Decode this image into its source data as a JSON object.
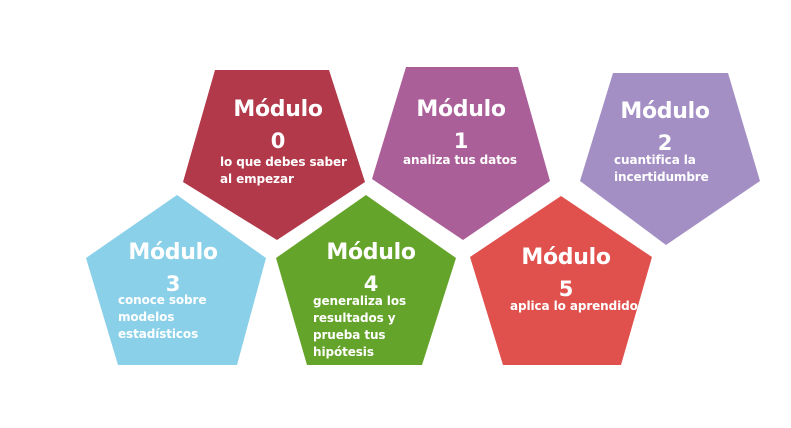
{
  "modules": [
    {
      "title": "Módulo",
      "number": "0",
      "description": "lo que debes saber\nal empezar",
      "color": "#b2394a"
    },
    {
      "title": "Módulo",
      "number": "1",
      "description": "analiza tus datos",
      "color": "#ab5f98"
    },
    {
      "title": "Módulo",
      "number": "2",
      "description": "cuantifica la\nincertidumbre",
      "color": "#a38fc4"
    },
    {
      "title": "Módulo",
      "number": "3",
      "description": "conoce sobre\nmodelos\nestadísticos",
      "color": "#8ad0e8"
    },
    {
      "title": "Módulo",
      "number": "4",
      "description": "generaliza los\nresultados y\nprueba tus\nhipótesis",
      "color": "#65a42a"
    },
    {
      "title": "Módulo",
      "number": "5",
      "description": "aplica lo aprendido",
      "color": "#e0514e"
    }
  ]
}
